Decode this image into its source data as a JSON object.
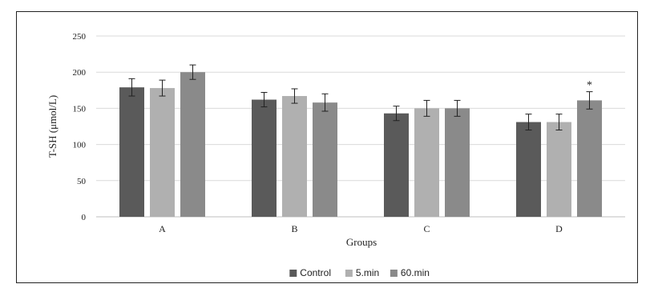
{
  "chart_data": {
    "type": "bar",
    "title": "",
    "xlabel": "Groups",
    "ylabel": "T-SH (μmol/L)",
    "ylim": [
      0,
      250
    ],
    "yticks": [
      "0",
      "50",
      "100",
      "150",
      "200",
      "250"
    ],
    "grid": true,
    "legend": "bottom",
    "categories": [
      "A",
      "B",
      "C",
      "D"
    ],
    "series": [
      {
        "name": "Control",
        "color": "#5a5a5a",
        "values": [
          179,
          162,
          143,
          131
        ],
        "errors": [
          12,
          10,
          10,
          11
        ]
      },
      {
        "name": "5.min",
        "color": "#b0b0b0",
        "values": [
          178,
          167,
          150,
          131
        ],
        "errors": [
          11,
          10,
          11,
          11
        ]
      },
      {
        "name": "60.min",
        "color": "#8a8a8a",
        "values": [
          200,
          158,
          150,
          161
        ],
        "errors": [
          10,
          12,
          11,
          12
        ]
      }
    ],
    "annotations": [
      {
        "text": "*",
        "category": "D",
        "series": "60.min"
      }
    ]
  }
}
